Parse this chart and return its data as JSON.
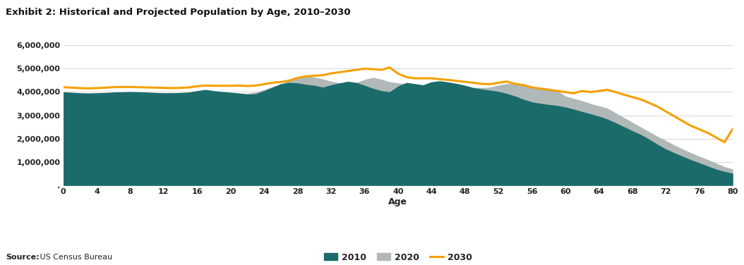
{
  "title": "Exhibit 2: Historical and Projected Population by Age, 2010–2030",
  "xlabel": "Age",
  "source_bold": "Source:",
  "source_normal": " US Census Bureau",
  "xlim": [
    0,
    80
  ],
  "ylim": [
    0,
    6000000
  ],
  "yticks": [
    0,
    1000000,
    2000000,
    3000000,
    4000000,
    5000000,
    6000000
  ],
  "ytick_labels": [
    ".",
    "1,000,000",
    "2,000,000",
    "3,000,000",
    "4,000,000",
    "5,000,000",
    "6,000,000"
  ],
  "xticks": [
    0,
    4,
    8,
    12,
    16,
    20,
    24,
    28,
    32,
    36,
    40,
    44,
    48,
    52,
    56,
    60,
    64,
    68,
    72,
    76,
    80
  ],
  "color_2010": "#1b6b6b",
  "color_2020": "#b0b8b8",
  "color_2030": "#f5a000",
  "ages": [
    0,
    1,
    2,
    3,
    4,
    5,
    6,
    7,
    8,
    9,
    10,
    11,
    12,
    13,
    14,
    15,
    16,
    17,
    18,
    19,
    20,
    21,
    22,
    23,
    24,
    25,
    26,
    27,
    28,
    29,
    30,
    31,
    32,
    33,
    34,
    35,
    36,
    37,
    38,
    39,
    40,
    41,
    42,
    43,
    44,
    45,
    46,
    47,
    48,
    49,
    50,
    51,
    52,
    53,
    54,
    55,
    56,
    57,
    58,
    59,
    60,
    61,
    62,
    63,
    64,
    65,
    66,
    67,
    68,
    69,
    70,
    71,
    72,
    73,
    74,
    75,
    76,
    77,
    78,
    79,
    80
  ],
  "pop_2010": [
    4000000,
    3980000,
    3960000,
    3950000,
    3960000,
    3970000,
    3990000,
    4000000,
    4010000,
    4000000,
    3990000,
    3970000,
    3960000,
    3960000,
    3970000,
    3990000,
    4050000,
    4100000,
    4050000,
    4010000,
    3980000,
    3950000,
    3900000,
    3920000,
    4050000,
    4200000,
    4350000,
    4400000,
    4380000,
    4320000,
    4280000,
    4200000,
    4300000,
    4380000,
    4450000,
    4400000,
    4280000,
    4150000,
    4050000,
    4000000,
    4250000,
    4400000,
    4350000,
    4300000,
    4430000,
    4470000,
    4420000,
    4360000,
    4280000,
    4180000,
    4120000,
    4070000,
    4020000,
    3930000,
    3820000,
    3680000,
    3570000,
    3510000,
    3460000,
    3420000,
    3350000,
    3260000,
    3160000,
    3060000,
    2960000,
    2840000,
    2680000,
    2510000,
    2340000,
    2180000,
    1980000,
    1760000,
    1560000,
    1400000,
    1250000,
    1100000,
    970000,
    830000,
    700000,
    600000,
    520000
  ],
  "pop_2020": [
    3900000,
    3880000,
    3870000,
    3870000,
    3890000,
    3910000,
    3930000,
    3940000,
    3940000,
    3930000,
    3920000,
    3910000,
    3910000,
    3920000,
    3940000,
    3960000,
    3980000,
    4000000,
    3980000,
    3960000,
    3940000,
    3940000,
    3940000,
    3990000,
    4100000,
    4220000,
    4320000,
    4500000,
    4650000,
    4680000,
    4630000,
    4550000,
    4450000,
    4390000,
    4370000,
    4400000,
    4530000,
    4620000,
    4540000,
    4430000,
    4380000,
    4340000,
    4290000,
    4290000,
    4330000,
    4340000,
    4330000,
    4290000,
    4240000,
    4190000,
    4180000,
    4200000,
    4290000,
    4350000,
    4360000,
    4320000,
    4230000,
    4170000,
    4120000,
    4070000,
    3820000,
    3720000,
    3620000,
    3500000,
    3400000,
    3310000,
    3100000,
    2900000,
    2700000,
    2500000,
    2300000,
    2100000,
    1920000,
    1730000,
    1560000,
    1400000,
    1250000,
    1110000,
    960000,
    810000,
    700000
  ],
  "pop_2030": [
    4200000,
    4180000,
    4160000,
    4150000,
    4160000,
    4180000,
    4200000,
    4210000,
    4210000,
    4200000,
    4190000,
    4180000,
    4170000,
    4160000,
    4170000,
    4190000,
    4240000,
    4270000,
    4260000,
    4260000,
    4260000,
    4270000,
    4250000,
    4270000,
    4330000,
    4390000,
    4420000,
    4480000,
    4600000,
    4660000,
    4690000,
    4710000,
    4790000,
    4840000,
    4890000,
    4940000,
    4990000,
    4970000,
    4940000,
    5040000,
    4780000,
    4630000,
    4580000,
    4580000,
    4580000,
    4540000,
    4510000,
    4470000,
    4430000,
    4390000,
    4340000,
    4330000,
    4390000,
    4440000,
    4340000,
    4290000,
    4190000,
    4140000,
    4090000,
    4040000,
    3990000,
    3940000,
    4040000,
    3990000,
    4040000,
    4090000,
    3990000,
    3880000,
    3780000,
    3680000,
    3530000,
    3370000,
    3160000,
    2960000,
    2750000,
    2550000,
    2400000,
    2250000,
    2050000,
    1850000,
    2430000
  ]
}
